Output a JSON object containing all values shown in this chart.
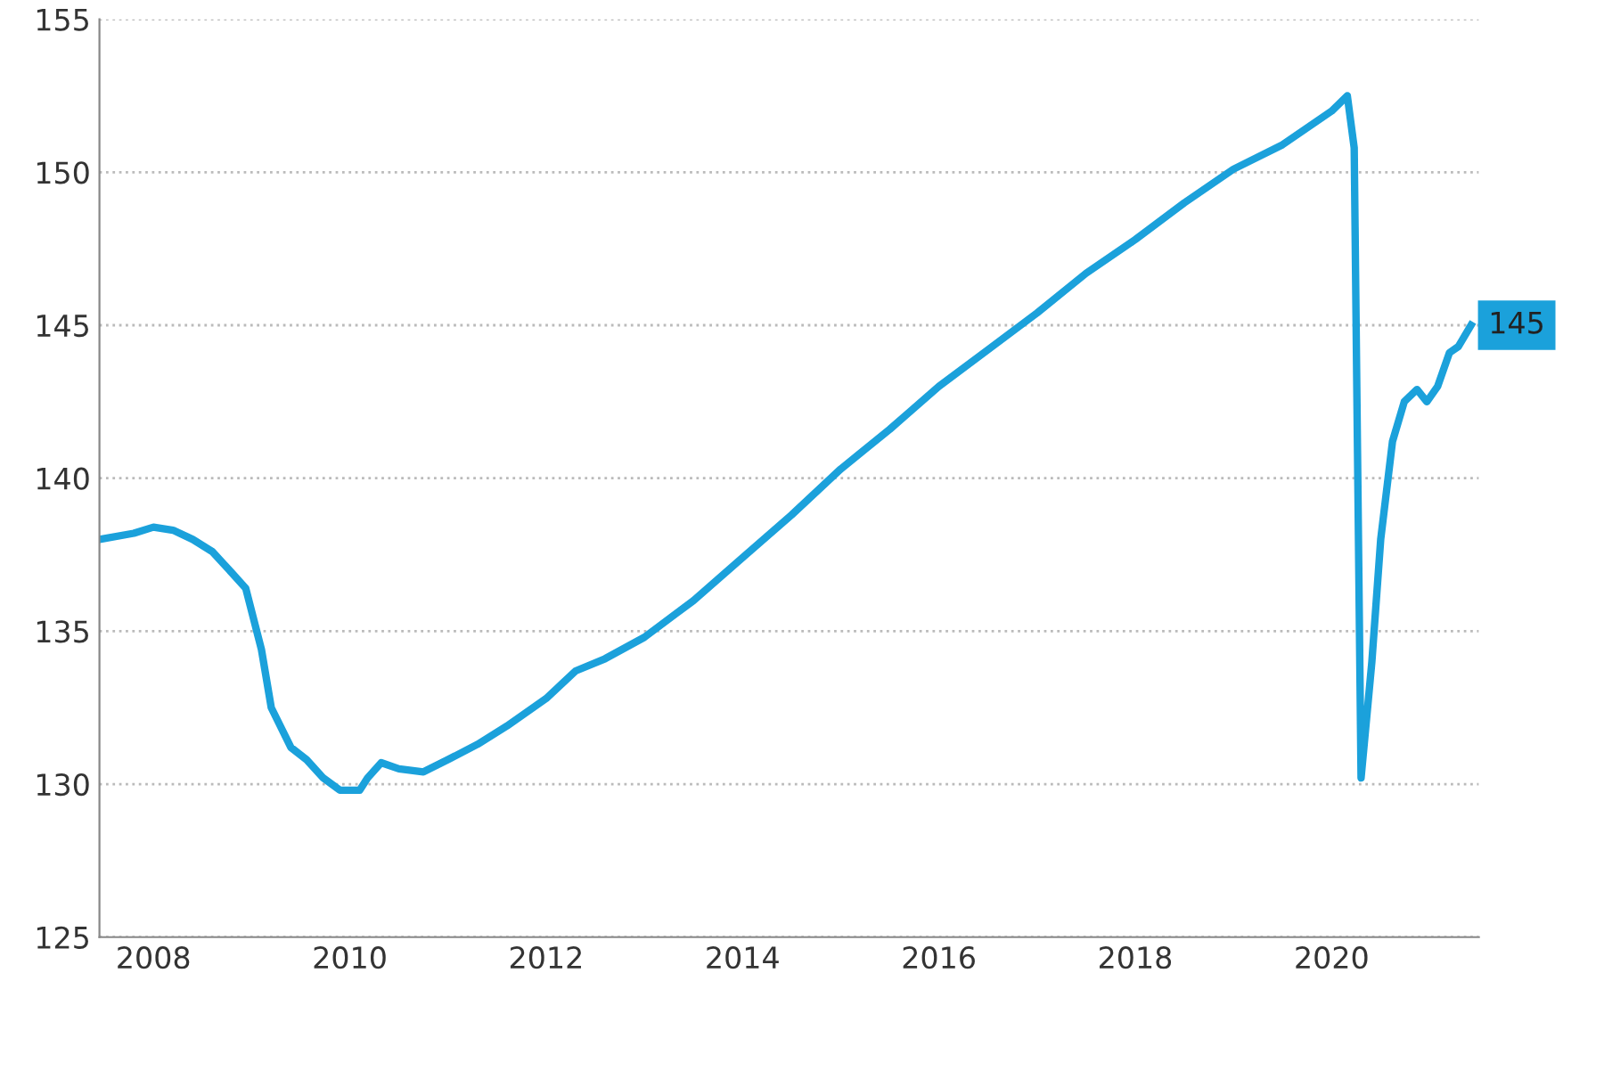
{
  "chart_data": {
    "type": "line",
    "x": [
      2007.45,
      2007.8,
      2008.0,
      2008.2,
      2008.4,
      2008.6,
      2008.8,
      2008.94,
      2009.1,
      2009.2,
      2009.4,
      2009.56,
      2009.73,
      2009.9,
      2010.1,
      2010.18,
      2010.32,
      2010.5,
      2010.75,
      2011.0,
      2011.3,
      2011.6,
      2012.0,
      2012.3,
      2012.6,
      2013.0,
      2013.5,
      2014.0,
      2014.5,
      2015.0,
      2015.5,
      2016.0,
      2016.5,
      2017.0,
      2017.5,
      2018.0,
      2018.5,
      2019.0,
      2019.5,
      2020.0,
      2020.16,
      2020.23,
      2020.3,
      2020.41,
      2020.5,
      2020.62,
      2020.74,
      2020.87,
      2020.97,
      2021.08,
      2021.2,
      2021.29,
      2021.42
    ],
    "series": [
      {
        "color": "#1ba1db",
        "values": [
          138.0,
          138.2,
          138.4,
          138.3,
          138.0,
          137.6,
          136.9,
          136.4,
          134.4,
          132.5,
          131.2,
          130.8,
          130.2,
          129.8,
          129.8,
          130.2,
          130.7,
          130.5,
          130.4,
          130.8,
          131.3,
          131.9,
          132.8,
          133.7,
          134.1,
          134.8,
          136.0,
          137.4,
          138.8,
          140.3,
          141.6,
          143.0,
          144.2,
          145.4,
          146.7,
          147.8,
          149.0,
          150.1,
          150.9,
          152.0,
          152.5,
          150.8,
          130.2,
          134.0,
          138.0,
          141.2,
          142.5,
          142.9,
          142.5,
          143.0,
          144.1,
          144.3,
          145
        ],
        "value_labels": [
          null,
          null,
          null,
          null,
          null,
          null,
          null,
          null,
          null,
          null,
          null,
          null,
          null,
          null,
          null,
          null,
          null,
          null,
          null,
          null,
          null,
          null,
          null,
          null,
          null,
          null,
          null,
          null,
          null,
          null,
          null,
          null,
          null,
          null,
          null,
          null,
          null,
          null,
          null,
          null,
          null,
          null,
          null,
          null,
          null,
          null,
          null,
          null,
          null,
          null,
          null,
          null,
          "145"
        ]
      }
    ],
    "xlim": [
      2007.45,
      2021.5
    ],
    "xticks": [
      2008,
      2010,
      2012,
      2014,
      2016,
      2018,
      2020
    ],
    "ylim": [
      125,
      155
    ],
    "yticks": [
      125,
      130,
      135,
      140,
      145,
      150,
      155
    ],
    "grid": "y",
    "marker": "none",
    "line_style": "solid"
  }
}
